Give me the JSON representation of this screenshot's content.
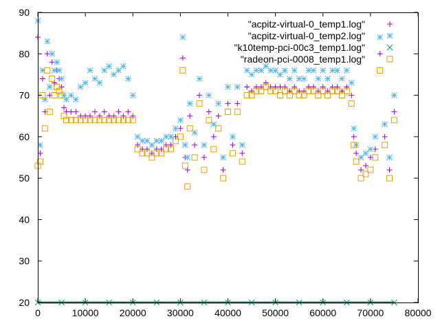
{
  "chart_data": {
    "type": "scatter",
    "title": "",
    "xlabel": "",
    "ylabel": "",
    "xlim": [
      0,
      80000
    ],
    "ylim": [
      20,
      90
    ],
    "x_ticks": [
      0,
      10000,
      20000,
      30000,
      40000,
      50000,
      60000,
      70000,
      80000
    ],
    "y_ticks": [
      20,
      30,
      40,
      50,
      60,
      70,
      80,
      90
    ],
    "grid": false,
    "legend_position": "top-right",
    "legend": [
      "\"acpitz-virtual-0_temp1.log\"",
      "\"acpitz-virtual-0_temp2.log\"",
      "\"k10temp-pci-00c3_temp1.log\"",
      "\"radeon-pci-0008_temp1.log\""
    ],
    "series": [
      {
        "name": "\"acpitz-virtual-0_temp1.log\"",
        "marker": "plus",
        "color": "#9400d3",
        "x": [
          0,
          500,
          1000,
          1500,
          2000,
          2500,
          3000,
          3500,
          4000,
          4500,
          5000,
          5500,
          6000,
          7000,
          8000,
          9000,
          10000,
          11000,
          12000,
          13000,
          14000,
          15000,
          16000,
          17000,
          18000,
          19000,
          20000,
          21000,
          22000,
          23000,
          24000,
          25000,
          26000,
          27000,
          28000,
          29000,
          30000,
          30500,
          31000,
          31500,
          32000,
          33000,
          34000,
          35000,
          36000,
          37000,
          38000,
          39000,
          40000,
          41000,
          42000,
          43000,
          44000,
          45000,
          46000,
          47000,
          48000,
          49000,
          50000,
          51000,
          52000,
          53000,
          54000,
          55000,
          56000,
          57000,
          58000,
          59000,
          60000,
          61000,
          62000,
          63000,
          64000,
          65000,
          66000,
          66500,
          67000,
          68000,
          69000,
          70000,
          71000,
          72000,
          73000,
          74000,
          75000
        ],
        "y": [
          84,
          56,
          74,
          66,
          80,
          70,
          78,
          73,
          76,
          74,
          72,
          67,
          66,
          66,
          66,
          65,
          65,
          65,
          66,
          65,
          66,
          65,
          65,
          66,
          65,
          66,
          65,
          58,
          57,
          57,
          56,
          57,
          57,
          58,
          58,
          60,
          62,
          79,
          55,
          52,
          65,
          58,
          70,
          55,
          66,
          60,
          65,
          52,
          68,
          58,
          68,
          56,
          72,
          71,
          72,
          72,
          73,
          72,
          72,
          72,
          72,
          71,
          72,
          71,
          71,
          72,
          72,
          71,
          72,
          71,
          72,
          72,
          71,
          72,
          70,
          60,
          56,
          52,
          53,
          55,
          57,
          80,
          60,
          52,
          66
        ]
      },
      {
        "name": "\"acpitz-virtual-0_temp2.log\"",
        "marker": "star",
        "color": "#56b4e9",
        "x": [
          0,
          500,
          1000,
          1500,
          2000,
          2500,
          3000,
          3500,
          4000,
          4500,
          5000,
          5500,
          6000,
          7000,
          8000,
          9000,
          10000,
          11000,
          12000,
          13000,
          14000,
          15000,
          16000,
          17000,
          18000,
          19000,
          20000,
          21000,
          22000,
          23000,
          24000,
          25000,
          26000,
          27000,
          28000,
          29000,
          30000,
          30500,
          31000,
          31500,
          32000,
          33000,
          34000,
          35000,
          36000,
          37000,
          38000,
          39000,
          40000,
          41000,
          42000,
          43000,
          44000,
          45000,
          46000,
          47000,
          48000,
          49000,
          50000,
          51000,
          52000,
          53000,
          54000,
          55000,
          56000,
          57000,
          58000,
          59000,
          60000,
          61000,
          62000,
          63000,
          64000,
          65000,
          66000,
          66500,
          67000,
          68000,
          69000,
          70000,
          71000,
          72000,
          73000,
          74000,
          75000
        ],
        "y": [
          88,
          58,
          76,
          69,
          83,
          72,
          80,
          76,
          78,
          76,
          74,
          70,
          69,
          70,
          69,
          72,
          73,
          76,
          74,
          73,
          76,
          77,
          75,
          76,
          77,
          74,
          70,
          60,
          59,
          59,
          58,
          59,
          59,
          60,
          60,
          62,
          64,
          84,
          58,
          55,
          68,
          61,
          74,
          58,
          70,
          63,
          68,
          55,
          72,
          60,
          72,
          58,
          76,
          75,
          76,
          76,
          77,
          76,
          76,
          75,
          76,
          74,
          76,
          74,
          74,
          76,
          76,
          74,
          76,
          74,
          76,
          76,
          74,
          76,
          73,
          62,
          58,
          55,
          56,
          57,
          60,
          84,
          63,
          55,
          70
        ]
      },
      {
        "name": "\"k10temp-pci-00c3_temp1.log\"",
        "marker": "cross",
        "color": "#009e73",
        "x": [
          0,
          5000,
          10000,
          15000,
          20000,
          25000,
          30000,
          35000,
          40000,
          45000,
          50000,
          55000,
          60000,
          65000,
          70000,
          75000
        ],
        "y": [
          20,
          20,
          20,
          20,
          20,
          20,
          20,
          20,
          20,
          20,
          20,
          20,
          20,
          20,
          20,
          20
        ]
      },
      {
        "name": "\"radeon-pci-0008_temp1.log\"",
        "marker": "square",
        "color": "#e69f00",
        "x": [
          0,
          500,
          1000,
          1500,
          2000,
          2500,
          3000,
          3500,
          4000,
          4500,
          5000,
          5500,
          6000,
          7000,
          8000,
          9000,
          10000,
          11000,
          12000,
          13000,
          14000,
          15000,
          16000,
          17000,
          18000,
          19000,
          20000,
          21000,
          22000,
          23000,
          24000,
          25000,
          26000,
          27000,
          28000,
          29000,
          30000,
          30500,
          31000,
          31500,
          32000,
          33000,
          34000,
          35000,
          36000,
          37000,
          38000,
          39000,
          40000,
          41000,
          42000,
          43000,
          44000,
          45000,
          46000,
          47000,
          48000,
          49000,
          50000,
          51000,
          52000,
          53000,
          54000,
          55000,
          56000,
          57000,
          58000,
          59000,
          60000,
          61000,
          62000,
          63000,
          64000,
          65000,
          66000,
          66500,
          67000,
          68000,
          69000,
          70000,
          71000,
          72000,
          73000,
          74000,
          75000
        ],
        "y": [
          53,
          54,
          70,
          62,
          76,
          66,
          74,
          70,
          72,
          71,
          70,
          65,
          64,
          64,
          64,
          64,
          64,
          64,
          64,
          64,
          64,
          64,
          64,
          64,
          64,
          64,
          64,
          57,
          56,
          56,
          55,
          56,
          56,
          57,
          57,
          59,
          60,
          76,
          53,
          48,
          62,
          55,
          68,
          52,
          64,
          57,
          62,
          50,
          66,
          56,
          66,
          54,
          70,
          70,
          71,
          71,
          72,
          71,
          71,
          70,
          71,
          70,
          71,
          70,
          70,
          71,
          71,
          70,
          71,
          70,
          71,
          71,
          70,
          71,
          68,
          58,
          54,
          50,
          51,
          52,
          55,
          76,
          58,
          50,
          64
        ]
      }
    ]
  }
}
